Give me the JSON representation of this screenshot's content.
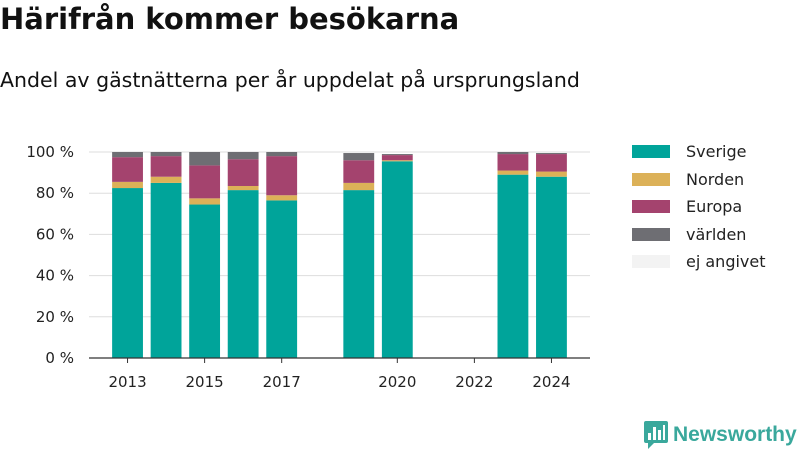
{
  "header": {
    "title": "Härifrån kommer besökarna",
    "subtitle": "Andel av gästnätterna per år uppdelat på ursprungsland"
  },
  "brand": {
    "name": "Newsworthy",
    "icon": "bar-chart-icon",
    "color": "#3aa89c"
  },
  "chart_data": {
    "type": "bar",
    "stacked": true,
    "title": "",
    "xlabel": "",
    "ylabel": "",
    "x": [
      2013,
      2014,
      2015,
      2016,
      2017,
      2019,
      2020,
      2023,
      2024
    ],
    "xlim": [
      2012,
      2025
    ],
    "x_ticks": [
      "2013",
      "2015",
      "2017",
      "2020",
      "2022",
      "2024"
    ],
    "ylim": [
      0,
      100
    ],
    "y_ticks": [
      "0 %",
      "20 %",
      "40 %",
      "60 %",
      "80 %",
      "100 %"
    ],
    "grid": true,
    "legend": "right",
    "series": [
      {
        "name": "Sverige",
        "color": "#00a49a",
        "values": [
          82.5,
          85,
          74.5,
          81.5,
          76.5,
          81.5,
          95.5,
          89,
          88
        ]
      },
      {
        "name": "Norden",
        "color": "#dcb158",
        "values": [
          3,
          3,
          3,
          2,
          2.5,
          3.5,
          0.5,
          2,
          2.5
        ]
      },
      {
        "name": "Europa",
        "color": "#a4436e",
        "values": [
          12,
          10,
          16,
          13,
          19,
          11,
          2.5,
          8,
          8.5
        ]
      },
      {
        "name": "världen",
        "color": "#6e6e73",
        "values": [
          2.5,
          2,
          6.5,
          3.5,
          2,
          3.5,
          0.5,
          1,
          0.5
        ]
      },
      {
        "name": "ej angivet",
        "color": "#f3f3f3",
        "values": [
          0,
          0,
          0,
          0,
          0,
          0,
          0,
          0,
          0
        ]
      }
    ]
  }
}
